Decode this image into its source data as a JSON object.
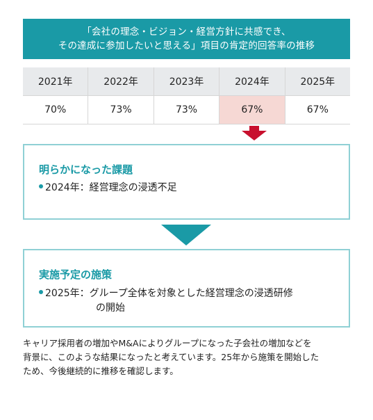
{
  "header": {
    "line1": "「会社の理念・ビジョン・経営方針に共感でき、",
    "line2": "その達成に参加したいと思える」項目の肯定的回答率の推移"
  },
  "table": {
    "years": [
      "2021年",
      "2022年",
      "2023年",
      "2024年",
      "2025年"
    ],
    "values": [
      "70%",
      "73%",
      "73%",
      "67%",
      "67%"
    ],
    "highlight_index": 3
  },
  "box1": {
    "title": "明らかになった課題",
    "item": "2024年：経営理念の浸透不足"
  },
  "box2": {
    "title": "実施予定の施策",
    "item_line1": "2025年：グループ全体を対象とした経営理念の浸透研修",
    "item_line2": "の開始"
  },
  "note": {
    "line1": "キャリア採用者の増加やM&Aによりグループになった子会社の増加などを",
    "line2": "背景に、このような結果になったと考えています。25年から施策を開始した",
    "line3": "ため、今後継続的に推移を確認します。"
  },
  "colors": {
    "accent": "#1a9aa6",
    "highlight": "#f6d8d4",
    "arrow_red": "#c8102e",
    "box_border": "#8fd0d5"
  }
}
